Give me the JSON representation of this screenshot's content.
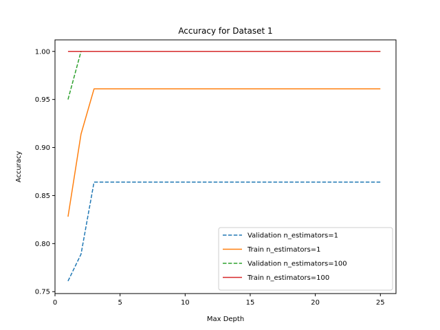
{
  "chart_data": {
    "type": "line",
    "title": "Accuracy for Dataset 1",
    "xlabel": "Max Depth",
    "ylabel": "Accuracy",
    "xlim": [
      0.0,
      26.2
    ],
    "ylim": [
      0.748,
      1.012
    ],
    "xticks": [
      {
        "value": 0,
        "label": "0"
      },
      {
        "value": 5,
        "label": "5"
      },
      {
        "value": 10,
        "label": "10"
      },
      {
        "value": 15,
        "label": "15"
      },
      {
        "value": 20,
        "label": "20"
      },
      {
        "value": 25,
        "label": "25"
      }
    ],
    "yticks": [
      {
        "value": 0.75,
        "label": "0.75"
      },
      {
        "value": 0.8,
        "label": "0.80"
      },
      {
        "value": 0.85,
        "label": "0.85"
      },
      {
        "value": 0.9,
        "label": "0.90"
      },
      {
        "value": 0.95,
        "label": "0.95"
      },
      {
        "value": 1.0,
        "label": "1.00"
      }
    ],
    "legend_position": "lower-right",
    "series": [
      {
        "name": "Validation n_estimators=1",
        "color": "#1f77b4",
        "style": "dashed",
        "x": [
          1,
          2,
          3,
          4,
          5,
          6,
          7,
          8,
          9,
          10,
          11,
          12,
          13,
          14,
          15,
          16,
          17,
          18,
          19,
          20,
          21,
          22,
          23,
          24,
          25
        ],
        "y": [
          0.761,
          0.789,
          0.864,
          0.864,
          0.864,
          0.864,
          0.864,
          0.864,
          0.864,
          0.864,
          0.864,
          0.864,
          0.864,
          0.864,
          0.864,
          0.864,
          0.864,
          0.864,
          0.864,
          0.864,
          0.864,
          0.864,
          0.864,
          0.864,
          0.864
        ]
      },
      {
        "name": "Train n_estimators=1",
        "color": "#ff7f0e",
        "style": "solid",
        "x": [
          1,
          2,
          3,
          4,
          5,
          6,
          7,
          8,
          9,
          10,
          11,
          12,
          13,
          14,
          15,
          16,
          17,
          18,
          19,
          20,
          21,
          22,
          23,
          24,
          25
        ],
        "y": [
          0.828,
          0.914,
          0.961,
          0.961,
          0.961,
          0.961,
          0.961,
          0.961,
          0.961,
          0.961,
          0.961,
          0.961,
          0.961,
          0.961,
          0.961,
          0.961,
          0.961,
          0.961,
          0.961,
          0.961,
          0.961,
          0.961,
          0.961,
          0.961,
          0.961
        ]
      },
      {
        "name": "Validation n_estimators=100",
        "color": "#2ca02c",
        "style": "dashed",
        "x": [
          1,
          2,
          3,
          4,
          5,
          6,
          7,
          8,
          9,
          10,
          11,
          12,
          13,
          14,
          15,
          16,
          17,
          18,
          19,
          20,
          21,
          22,
          23,
          24,
          25
        ],
        "y": [
          0.95,
          1.0,
          1.0,
          1.0,
          1.0,
          1.0,
          1.0,
          1.0,
          1.0,
          1.0,
          1.0,
          1.0,
          1.0,
          1.0,
          1.0,
          1.0,
          1.0,
          1.0,
          1.0,
          1.0,
          1.0,
          1.0,
          1.0,
          1.0,
          1.0
        ]
      },
      {
        "name": "Train n_estimators=100",
        "color": "#d62728",
        "style": "solid",
        "x": [
          1,
          2,
          3,
          4,
          5,
          6,
          7,
          8,
          9,
          10,
          11,
          12,
          13,
          14,
          15,
          16,
          17,
          18,
          19,
          20,
          21,
          22,
          23,
          24,
          25
        ],
        "y": [
          1.0,
          1.0,
          1.0,
          1.0,
          1.0,
          1.0,
          1.0,
          1.0,
          1.0,
          1.0,
          1.0,
          1.0,
          1.0,
          1.0,
          1.0,
          1.0,
          1.0,
          1.0,
          1.0,
          1.0,
          1.0,
          1.0,
          1.0,
          1.0,
          1.0
        ]
      }
    ]
  }
}
